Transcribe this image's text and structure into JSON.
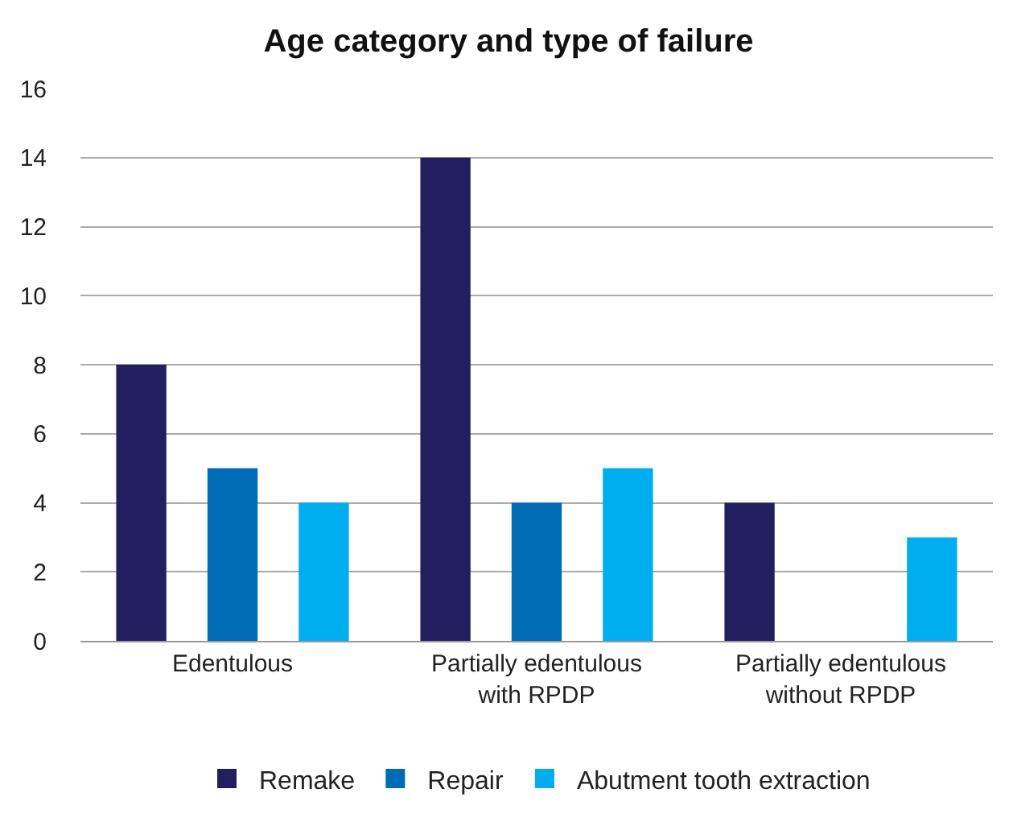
{
  "chart_data": {
    "type": "bar",
    "title": "Age category and type of failure",
    "categories": [
      "Edentulous",
      "Partially edentulous\nwith RPDP",
      "Partially edentulous\nwithout RPDP"
    ],
    "series": [
      {
        "name": "Remake",
        "color": "#231f5f",
        "values": [
          8,
          14,
          4
        ]
      },
      {
        "name": "Repair",
        "color": "#006cb5",
        "values": [
          5,
          4,
          0
        ]
      },
      {
        "name": "Abutment tooth extraction",
        "color": "#00aeef",
        "values": [
          4,
          5,
          3
        ]
      }
    ],
    "ylim": [
      0,
      16
    ],
    "yticks": [
      0,
      2,
      4,
      6,
      8,
      10,
      12,
      14,
      16
    ],
    "grid": "y",
    "legend": "bottom"
  }
}
